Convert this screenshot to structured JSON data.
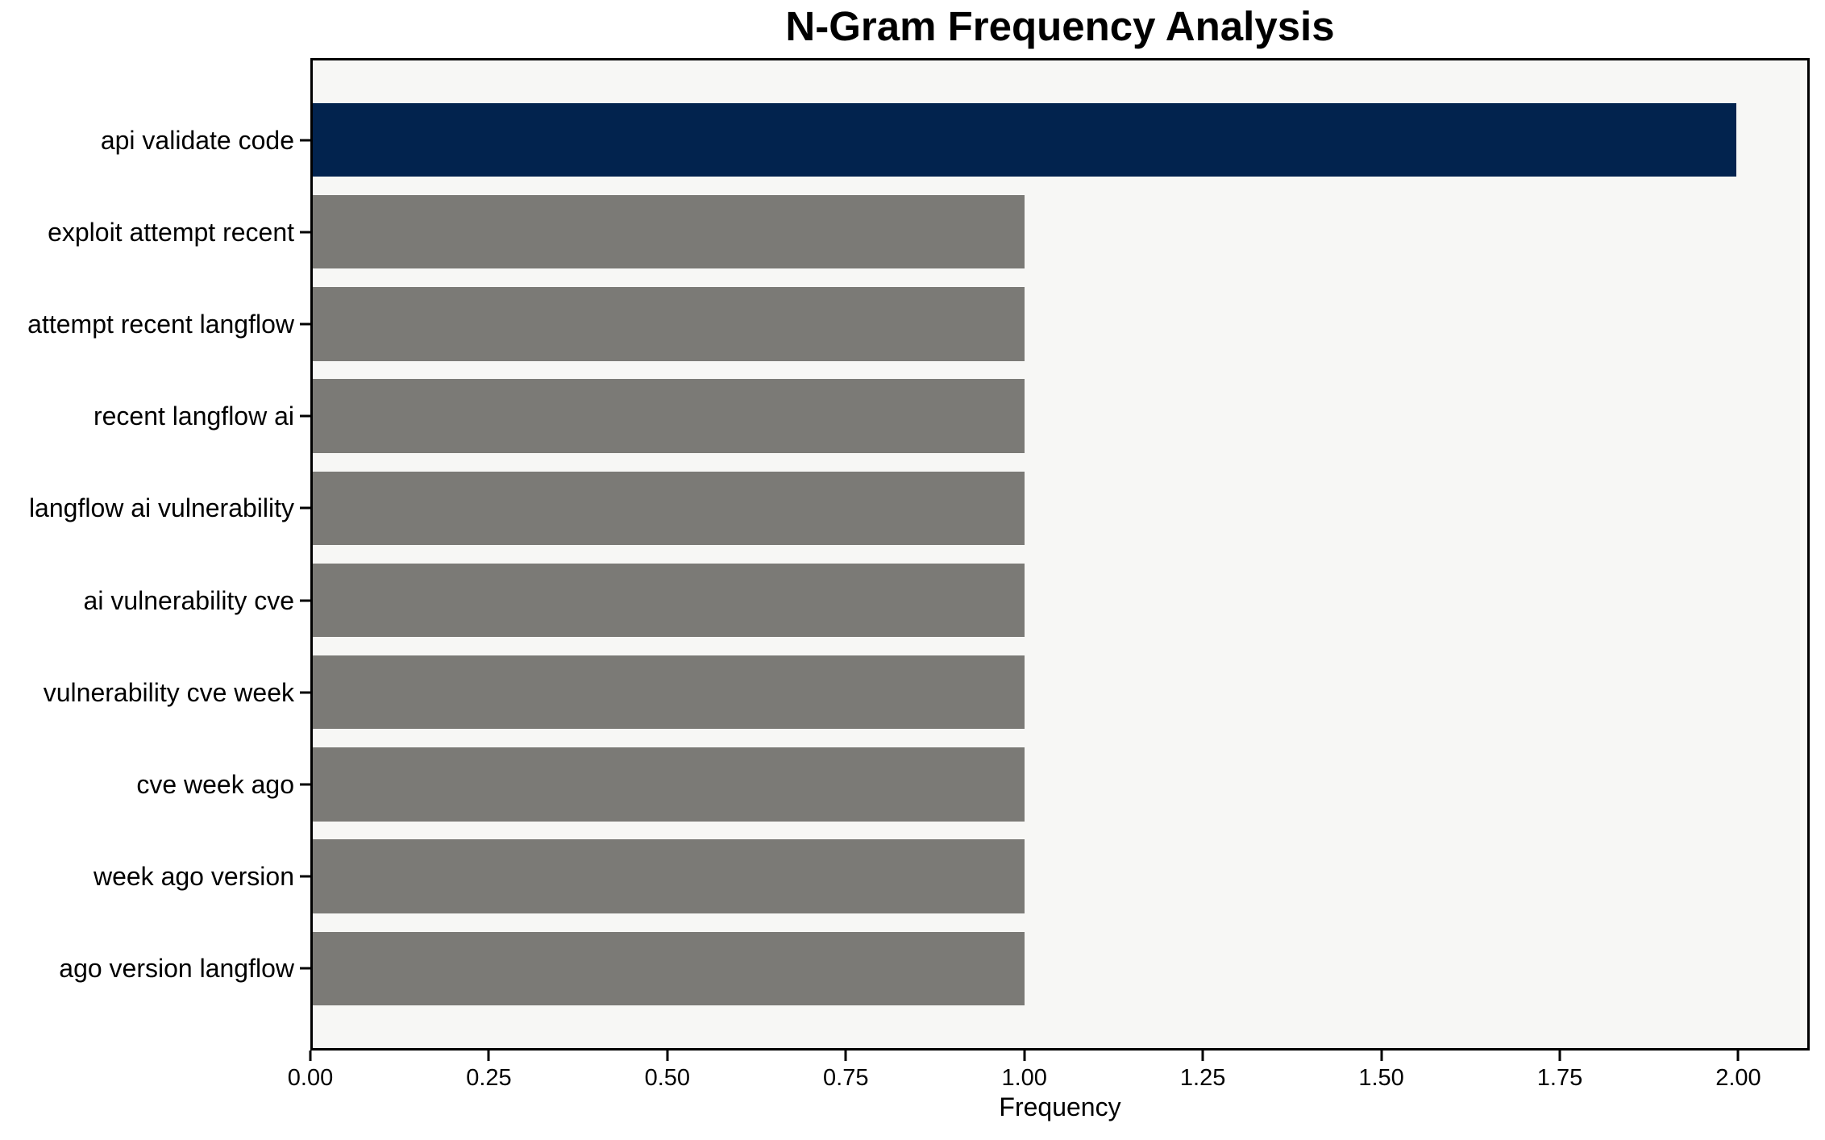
{
  "chart_data": {
    "type": "bar",
    "orientation": "horizontal",
    "title": "N-Gram Frequency Analysis",
    "xlabel": "Frequency",
    "ylabel": "",
    "categories": [
      "api validate code",
      "exploit attempt recent",
      "attempt recent langflow",
      "recent langflow ai",
      "langflow ai vulnerability",
      "ai vulnerability cve",
      "vulnerability cve week",
      "cve week ago",
      "week ago version",
      "ago version langflow"
    ],
    "values": [
      2,
      1,
      1,
      1,
      1,
      1,
      1,
      1,
      1,
      1
    ],
    "bar_colors": [
      "#02234E",
      "#7B7A76",
      "#7B7A76",
      "#7B7A76",
      "#7B7A76",
      "#7B7A76",
      "#7B7A76",
      "#7B7A76",
      "#7B7A76",
      "#7B7A76"
    ],
    "xlim": [
      0,
      2.1
    ],
    "xticks": [
      {
        "value": 0.0,
        "label": "0.00"
      },
      {
        "value": 0.25,
        "label": "0.25"
      },
      {
        "value": 0.5,
        "label": "0.50"
      },
      {
        "value": 0.75,
        "label": "0.75"
      },
      {
        "value": 1.0,
        "label": "1.00"
      },
      {
        "value": 1.25,
        "label": "1.25"
      },
      {
        "value": 1.5,
        "label": "1.50"
      },
      {
        "value": 1.75,
        "label": "1.75"
      },
      {
        "value": 2.0,
        "label": "2.00"
      }
    ],
    "grid": false,
    "legend_position": "none",
    "colors": {
      "plot_background": "#F7F7F5",
      "figure_background": "#ffffff",
      "spine": "#000000",
      "highlight_bar": "#02234E",
      "default_bar": "#7B7A76"
    }
  }
}
